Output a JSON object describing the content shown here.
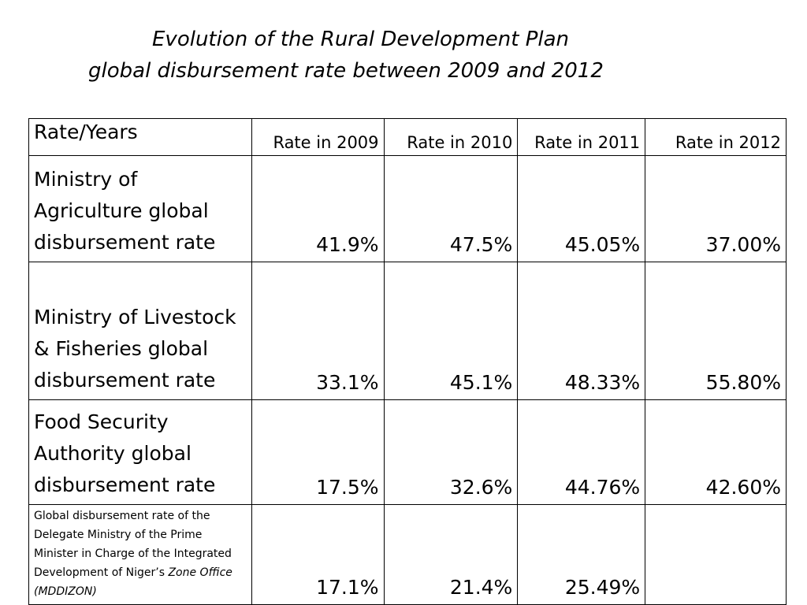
{
  "title": {
    "line1": "Evolution of the Rural Development Plan",
    "line2": "global disbursement rate between 2009 and 2012"
  },
  "table": {
    "corner": "Rate/Years",
    "columns": [
      "Rate in 2009",
      "Rate in 2010",
      "Rate in 2011",
      "Rate in 2012"
    ],
    "rows": [
      {
        "label": "Ministry of Agriculture global disbursement rate",
        "values": [
          "41.9%",
          "47.5%",
          "45.05%",
          "37.00%"
        ]
      },
      {
        "label": "Ministry of Livestock & Fisheries global disbursement rate",
        "values": [
          "33.1%",
          "45.1%",
          "48.33%",
          "55.80%"
        ]
      },
      {
        "label": "Food Security Authority global disbursement rate",
        "values": [
          "17.5%",
          "32.6%",
          "44.76%",
          "42.60%"
        ]
      },
      {
        "label_main": "Global disbursement rate of the Delegate Ministry of the Prime Minister in Charge of the Integrated Development of Niger’s",
        "label_italic": "Zone Office (MDDIZON)",
        "values": [
          "17.1%",
          "21.4%",
          "25.49%",
          ""
        ]
      }
    ]
  }
}
